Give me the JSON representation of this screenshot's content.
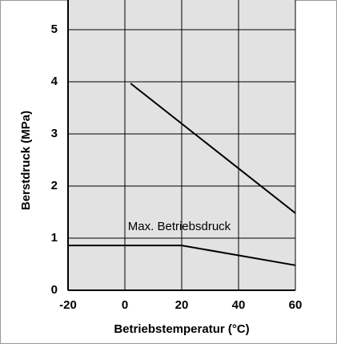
{
  "chart_data": {
    "type": "line",
    "xlabel": "Betriebstemperatur (°C)",
    "ylabel": "Berstdruck  (MPa)",
    "annotation": "Max. Betriebsdruck",
    "series": [
      {
        "color": "#000000",
        "x": [
          2,
          60
        ],
        "values": [
          3.97,
          1.48
        ]
      },
      {
        "color": "#000000",
        "x": [
          -20,
          20,
          60
        ],
        "values": [
          0.86,
          0.86,
          0.48
        ]
      }
    ],
    "xlim": [
      -20,
      60
    ],
    "xticks": [
      -20,
      0,
      20,
      40,
      60
    ],
    "ylim": [
      0,
      5.57
    ],
    "yticks": [
      0,
      1,
      2,
      3,
      4,
      5
    ],
    "grid": true
  }
}
